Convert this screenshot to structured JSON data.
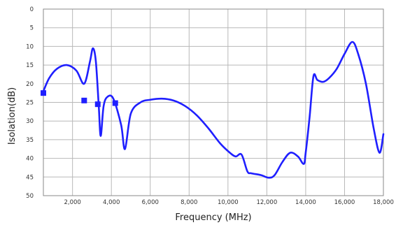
{
  "chart_data": {
    "type": "line",
    "title": "",
    "xlabel": "Frequency (MHz)",
    "ylabel": "Isolation(dB)",
    "xlim": [
      500,
      18000
    ],
    "ylim": [
      0,
      50
    ],
    "y_inverted": true,
    "x_ticks": [
      2000,
      4000,
      6000,
      8000,
      10000,
      12000,
      14000,
      16000,
      18000
    ],
    "x_tick_labels": [
      "2,000",
      "4,000",
      "6,000",
      "8,000",
      "10,000",
      "12,000",
      "14,000",
      "16,000",
      "18,000"
    ],
    "y_ticks": [
      0,
      5,
      10,
      15,
      20,
      25,
      30,
      35,
      40,
      45,
      50
    ],
    "y_tick_labels": [
      "0",
      "5",
      "10",
      "15",
      "20",
      "25",
      "30",
      "35",
      "40",
      "45",
      "50"
    ],
    "grid": true,
    "series": [
      {
        "color": "#1f1fff",
        "x": [
          500,
          800,
          1200,
          1700,
          2200,
          2600,
          2900,
          3050,
          3200,
          3350,
          3450,
          3600,
          3800,
          4100,
          4500,
          4700,
          5000,
          5500,
          6000,
          6600,
          7200,
          7800,
          8400,
          9000,
          9600,
          10100,
          10400,
          10700,
          11000,
          11200,
          11700,
          12100,
          12400,
          12800,
          13200,
          13600,
          13900,
          14000,
          14200,
          14400,
          14600,
          14900,
          15200,
          15600,
          16000,
          16400,
          16700,
          17100,
          17500,
          17800,
          18000
        ],
        "y": [
          22,
          18.5,
          16,
          15,
          16.5,
          20,
          14,
          10.5,
          14,
          26,
          34,
          26,
          23.5,
          24,
          31,
          37.5,
          28,
          25,
          24.3,
          24,
          24.5,
          26,
          28.5,
          32,
          36,
          38.5,
          39.5,
          39,
          43.5,
          44,
          44.5,
          45.2,
          44.5,
          41,
          38.5,
          39.5,
          41.5,
          38.5,
          29,
          18,
          19,
          19.5,
          18.5,
          16,
          12,
          8.8,
          12,
          20,
          32,
          38.5,
          33.5
        ]
      }
    ],
    "markers": [
      {
        "x": 500,
        "y": 22.5
      },
      {
        "x": 2600,
        "y": 24.5
      },
      {
        "x": 3300,
        "y": 25.5
      },
      {
        "x": 4200,
        "y": 25.2
      }
    ]
  }
}
